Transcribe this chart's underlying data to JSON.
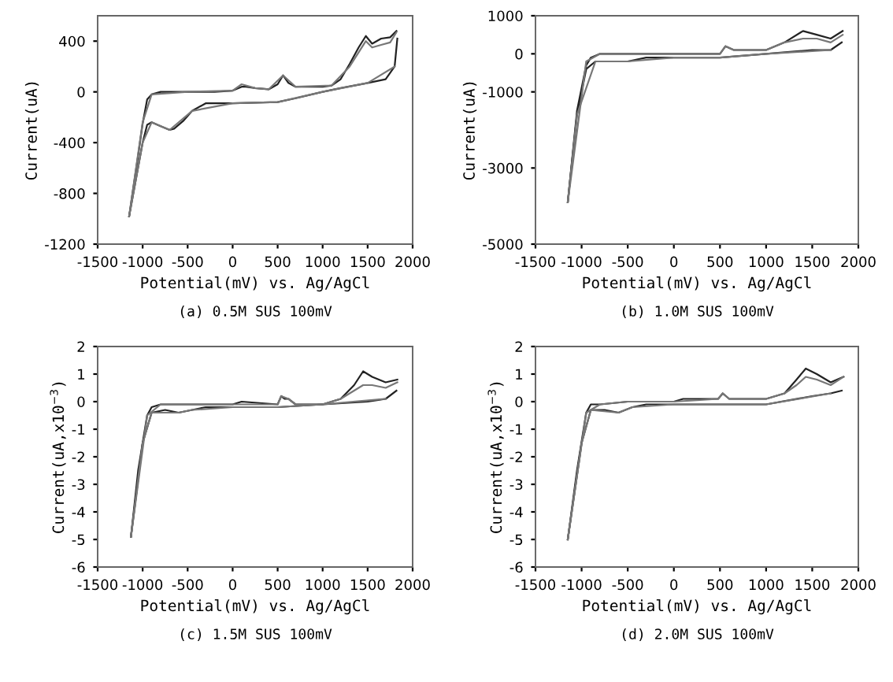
{
  "chart_data": [
    {
      "type": "line",
      "xlabel": "Potential(mV) vs. Ag/AgCl",
      "ylabel": "Current(uA)",
      "annotations": [
        "(a) 0.5M SUS 100mV"
      ],
      "xlim": [
        -1500,
        2000
      ],
      "xticks": [
        -1500,
        -1000,
        -500,
        0,
        500,
        1000,
        1500,
        2000
      ],
      "ylim": [
        -1200,
        600
      ],
      "yticks": [
        -1200,
        -800,
        -400,
        0,
        400
      ],
      "grid": false,
      "legend": false,
      "series": [
        {
          "color": "#222222",
          "x": [
            -1150,
            -1050,
            -1000,
            -950,
            -900,
            -800,
            -500,
            -200,
            0,
            100,
            150,
            250,
            400,
            500,
            560,
            620,
            700,
            1000,
            1100,
            1200,
            1300,
            1400,
            1480,
            1550,
            1650,
            1750,
            1820
          ],
          "values": [
            -980,
            -500,
            -250,
            -60,
            -20,
            0,
            0,
            0,
            10,
            40,
            40,
            30,
            20,
            60,
            130,
            70,
            40,
            40,
            50,
            100,
            220,
            350,
            440,
            380,
            420,
            430,
            480
          ]
        },
        {
          "color": "#222222",
          "x": [
            1830,
            1800,
            1700,
            1500,
            1200,
            1000,
            700,
            500,
            0,
            -300,
            -450,
            -550,
            -650,
            -700,
            -800,
            -900,
            -950,
            -1000,
            -1150
          ],
          "values": [
            420,
            200,
            100,
            70,
            30,
            0,
            -50,
            -80,
            -90,
            -90,
            -150,
            -230,
            -290,
            -300,
            -270,
            -240,
            -260,
            -400,
            -980
          ]
        },
        {
          "color": "#777777",
          "x": [
            -1150,
            -1000,
            -900,
            -500,
            0,
            100,
            250,
            400,
            560,
            700,
            1100,
            1300,
            1480,
            1550,
            1650,
            1750,
            1820
          ],
          "values": [
            -980,
            -240,
            -20,
            0,
            10,
            60,
            30,
            20,
            130,
            40,
            50,
            200,
            400,
            350,
            370,
            390,
            470
          ]
        },
        {
          "color": "#777777",
          "x": [
            1800,
            1500,
            1000,
            500,
            0,
            -450,
            -700,
            -900,
            -1000,
            -1150
          ],
          "values": [
            200,
            70,
            0,
            -80,
            -90,
            -150,
            -300,
            -240,
            -400,
            -980
          ]
        }
      ]
    },
    {
      "type": "line",
      "xlabel": "Potential(mV) vs. Ag/AgCl",
      "ylabel": "Current(uA)",
      "annotations": [
        "(b) 1.0M SUS 100mV"
      ],
      "xlim": [
        -1500,
        2000
      ],
      "xticks": [
        -1500,
        -1000,
        -500,
        0,
        500,
        1000,
        1500,
        2000
      ],
      "ylim": [
        -5000,
        1000
      ],
      "yticks": [
        -5000,
        -3000,
        -1000,
        0,
        1000
      ],
      "grid": false,
      "legend": false,
      "series": [
        {
          "color": "#222222",
          "x": [
            -1150,
            -1050,
            -950,
            -900,
            -800,
            -500,
            0,
            100,
            500,
            560,
            650,
            900,
            1000,
            1200,
            1400,
            1550,
            1700,
            1830
          ],
          "values": [
            -3900,
            -1500,
            -300,
            -100,
            0,
            0,
            0,
            0,
            0,
            200,
            100,
            100,
            100,
            300,
            600,
            500,
            400,
            600
          ]
        },
        {
          "color": "#222222",
          "x": [
            1820,
            1700,
            1500,
            1000,
            500,
            0,
            -300,
            -500,
            -600,
            -700,
            -850,
            -950,
            -1050,
            -1150
          ],
          "values": [
            300,
            100,
            100,
            0,
            -100,
            -100,
            -100,
            -200,
            -200,
            -200,
            -200,
            -400,
            -1600,
            -3900
          ]
        },
        {
          "color": "#777777",
          "x": [
            -1150,
            -950,
            -800,
            -500,
            0,
            500,
            560,
            650,
            1000,
            1200,
            1400,
            1550,
            1700,
            1830
          ],
          "values": [
            -3900,
            -200,
            0,
            0,
            0,
            0,
            200,
            100,
            100,
            300,
            400,
            400,
            300,
            500
          ]
        },
        {
          "color": "#777777",
          "x": [
            1700,
            1000,
            500,
            0,
            -500,
            -600,
            -850,
            -1050,
            -1150
          ],
          "values": [
            100,
            0,
            -100,
            -100,
            -200,
            -200,
            -200,
            -1600,
            -3900
          ]
        }
      ]
    },
    {
      "type": "line",
      "xlabel": "Potential(mV) vs. Ag/AgCl",
      "ylabel": "Current(uA,x10$^{−3}$)",
      "annotations": [
        "(c) 1.5M SUS 100mV"
      ],
      "xlim": [
        -1500,
        2000
      ],
      "xticks": [
        -1500,
        -1000,
        -500,
        0,
        500,
        1000,
        1500,
        2000
      ],
      "ylim": [
        -6,
        2
      ],
      "yticks": [
        -6,
        -5,
        -4,
        -3,
        -2,
        -1,
        0,
        1,
        2
      ],
      "grid": false,
      "legend": false,
      "series": [
        {
          "color": "#222222",
          "x": [
            -1130,
            -1050,
            -950,
            -900,
            -800,
            -500,
            0,
            100,
            500,
            540,
            580,
            620,
            700,
            1000,
            1200,
            1350,
            1450,
            1550,
            1700,
            1830
          ],
          "values": [
            -4.9,
            -2.5,
            -0.5,
            -0.2,
            -0.1,
            -0.1,
            -0.1,
            0.0,
            -0.1,
            0.2,
            0.1,
            0.1,
            -0.1,
            -0.1,
            0.1,
            0.6,
            1.1,
            0.9,
            0.7,
            0.8
          ]
        },
        {
          "color": "#222222",
          "x": [
            1820,
            1700,
            1500,
            1000,
            500,
            0,
            -300,
            -450,
            -600,
            -750,
            -900,
            -1000,
            -1130
          ],
          "values": [
            0.4,
            0.1,
            0.0,
            -0.1,
            -0.2,
            -0.2,
            -0.2,
            -0.3,
            -0.4,
            -0.3,
            -0.4,
            -1.5,
            -4.9
          ]
        },
        {
          "color": "#777777",
          "x": [
            -1130,
            -950,
            -800,
            -500,
            0,
            500,
            540,
            620,
            700,
            1000,
            1200,
            1350,
            1450,
            1550,
            1700,
            1830
          ],
          "values": [
            -4.9,
            -0.5,
            -0.1,
            -0.1,
            -0.1,
            -0.1,
            0.2,
            0.1,
            -0.1,
            -0.1,
            0.1,
            0.4,
            0.6,
            0.6,
            0.5,
            0.7
          ]
        },
        {
          "color": "#777777",
          "x": [
            1700,
            1000,
            500,
            0,
            -450,
            -600,
            -900,
            -1000,
            -1130
          ],
          "values": [
            0.1,
            -0.1,
            -0.2,
            -0.2,
            -0.3,
            -0.4,
            -0.4,
            -1.5,
            -4.9
          ]
        }
      ]
    },
    {
      "type": "line",
      "xlabel": "Potential(mV) vs. Ag/AgCl",
      "ylabel": "Current(uA,x10$^{−3}$)",
      "annotations": [
        "(d) 2.0M SUS 100mV"
      ],
      "xlim": [
        -1500,
        2000
      ],
      "xticks": [
        -1500,
        -1000,
        -500,
        0,
        500,
        1000,
        1500,
        2000
      ],
      "ylim": [
        -6,
        2
      ],
      "yticks": [
        -6,
        -5,
        -4,
        -3,
        -2,
        -1,
        0,
        1,
        2
      ],
      "grid": false,
      "legend": false,
      "series": [
        {
          "color": "#222222",
          "x": [
            -1150,
            -1050,
            -950,
            -900,
            -800,
            -500,
            0,
            100,
            480,
            530,
            600,
            1000,
            1200,
            1330,
            1430,
            1550,
            1700,
            1840
          ],
          "values": [
            -5.0,
            -2.5,
            -0.4,
            -0.1,
            -0.1,
            0.0,
            0.0,
            0.1,
            0.1,
            0.3,
            0.1,
            0.1,
            0.3,
            0.8,
            1.2,
            1.0,
            0.7,
            0.9
          ]
        },
        {
          "color": "#222222",
          "x": [
            1820,
            1700,
            1500,
            1000,
            500,
            0,
            -300,
            -450,
            -600,
            -750,
            -900,
            -1000,
            -1150
          ],
          "values": [
            0.4,
            0.3,
            0.2,
            -0.1,
            -0.1,
            -0.1,
            -0.1,
            -0.2,
            -0.4,
            -0.3,
            -0.3,
            -1.5,
            -5.0
          ]
        },
        {
          "color": "#777777",
          "x": [
            -1150,
            -950,
            -800,
            -500,
            0,
            480,
            530,
            600,
            1000,
            1200,
            1330,
            1430,
            1550,
            1700,
            1840
          ],
          "values": [
            -5.0,
            -0.4,
            -0.1,
            0.0,
            0.0,
            0.1,
            0.3,
            0.1,
            0.1,
            0.3,
            0.6,
            0.9,
            0.8,
            0.6,
            0.9
          ]
        },
        {
          "color": "#777777",
          "x": [
            1700,
            1000,
            500,
            0,
            -450,
            -600,
            -900,
            -1000,
            -1150
          ],
          "values": [
            0.3,
            -0.1,
            -0.1,
            -0.1,
            -0.2,
            -0.4,
            -0.3,
            -1.5,
            -5.0
          ]
        }
      ]
    }
  ]
}
